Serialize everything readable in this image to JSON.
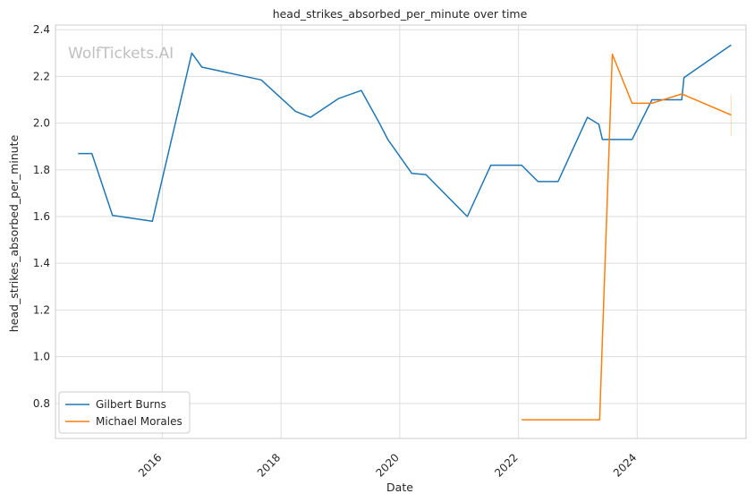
{
  "chart_data": {
    "type": "line",
    "title": "head_strikes_absorbed_per_minute over time",
    "xlabel": "Date",
    "ylabel": "head_strikes_absorbed_per_minute",
    "watermark": "WolfTickets.AI",
    "x_ticks": [
      "2016",
      "2018",
      "2020",
      "2022",
      "2024"
    ],
    "y_ticks": [
      "0.8",
      "1.0",
      "1.2",
      "1.4",
      "1.6",
      "1.8",
      "2.0",
      "2.2",
      "2.4"
    ],
    "xlim": [
      "2014-03-15",
      "2025-11-01"
    ],
    "ylim": [
      0.65,
      2.42
    ],
    "grid": true,
    "legend_position": "lower-left",
    "series": [
      {
        "name": "Gilbert Burns",
        "color": "#1f77b4",
        "points": [
          [
            "2014-08-01",
            1.87
          ],
          [
            "2014-10-25",
            1.87
          ],
          [
            "2015-03-01",
            1.605
          ],
          [
            "2015-11-01",
            1.58
          ],
          [
            "2016-07-01",
            2.3
          ],
          [
            "2016-09-01",
            2.24
          ],
          [
            "2017-09-01",
            2.185
          ],
          [
            "2018-04-01",
            2.05
          ],
          [
            "2018-07-01",
            2.025
          ],
          [
            "2018-12-20",
            2.105
          ],
          [
            "2019-05-10",
            2.14
          ],
          [
            "2019-08-25",
            2.005
          ],
          [
            "2019-10-20",
            1.93
          ],
          [
            "2020-03-15",
            1.785
          ],
          [
            "2020-06-10",
            1.78
          ],
          [
            "2021-02-20",
            1.6
          ],
          [
            "2021-07-15",
            1.82
          ],
          [
            "2022-01-20",
            1.82
          ],
          [
            "2022-05-01",
            1.75
          ],
          [
            "2022-09-01",
            1.75
          ],
          [
            "2023-03-01",
            2.025
          ],
          [
            "2023-05-10",
            1.995
          ],
          [
            "2023-06-01",
            1.93
          ],
          [
            "2023-12-01",
            1.93
          ],
          [
            "2024-04-01",
            2.1
          ],
          [
            "2024-10-01",
            2.1
          ],
          [
            "2024-10-15",
            2.195
          ],
          [
            "2025-08-01",
            2.335
          ]
        ]
      },
      {
        "name": "Michael Morales",
        "color": "#ff7f0e",
        "points": [
          [
            "2022-01-20",
            0.73
          ],
          [
            "2023-05-15",
            0.73
          ],
          [
            "2023-08-01",
            2.295
          ],
          [
            "2023-12-01",
            2.085
          ],
          [
            "2024-04-01",
            2.085
          ],
          [
            "2024-10-01",
            2.125
          ],
          [
            "2025-08-01",
            2.035
          ]
        ],
        "error_bar": {
          "date": "2025-08-01",
          "low": 1.945,
          "high": 2.12
        }
      }
    ]
  }
}
